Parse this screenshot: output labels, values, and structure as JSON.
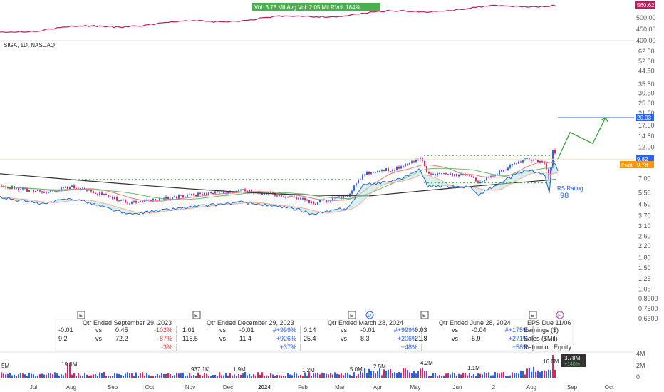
{
  "header": {
    "stats_line": "Vol: 3.78 Mil   Avg Vol: 2.05 Mil   RVol: 184%",
    "index_price_badge": "560.62",
    "index_ticks": [
      "500.00",
      "450.00",
      "400.00"
    ]
  },
  "symbol_label": "SIGA, 1D, NASDAQ",
  "price_axis": {
    "ticks": [
      "62.50",
      "52.50",
      "44.50",
      "35.50",
      "30.50",
      "25.50",
      "21.50",
      "17.50",
      "14.50",
      "12.00",
      "9.50",
      "7.00",
      "5.50",
      "4.50",
      "3.70",
      "3.10",
      "2.60",
      "2.20",
      "1.80",
      "1.50",
      "1.25",
      "1.05",
      "0.8900",
      "0.7500",
      "0.6300"
    ],
    "badges": {
      "target": "20.03",
      "last": "9.82",
      "pivot_prefix": "Pivot",
      "pivot": "9.78"
    }
  },
  "rs_rating": {
    "label": "RS Rating",
    "value": "98"
  },
  "fundamentals": {
    "markers": [
      {
        "letter": "E"
      },
      {
        "letter": "E"
      },
      {
        "letter": "E"
      },
      {
        "letter": "D"
      },
      {
        "letter": "E"
      },
      {
        "letter": "E"
      },
      {
        "letter": "F"
      }
    ],
    "quarters": [
      {
        "title": "Qtr Ended September 29, 2023",
        "rows": [
          [
            "-0.01",
            "vs",
            "0.45",
            "-102%"
          ],
          [
            "9.2",
            "vs",
            "72.2",
            "-87%"
          ],
          [
            "",
            "",
            "",
            "-3%"
          ]
        ]
      },
      {
        "title": "Qtr Ended December 29, 2023",
        "rows": [
          [
            "1.01",
            "vs",
            "-0.01",
            "#+999%"
          ],
          [
            "116.5",
            "vs",
            "11.4",
            "+926%"
          ],
          [
            "",
            "",
            "",
            "+37%"
          ]
        ]
      },
      {
        "title": "Qtr Ended March 28, 2024",
        "rows": [
          [
            "0.14",
            "vs",
            "-0.01",
            "#+999%"
          ],
          [
            "25.4",
            "vs",
            "8.3",
            "+206%"
          ],
          [
            "",
            "",
            "",
            "+48%"
          ]
        ]
      },
      {
        "title": "Qtr Ended June 28, 2024",
        "rows": [
          [
            "0.03",
            "vs",
            "-0.04",
            "#+175%"
          ],
          [
            "21.8",
            "vs",
            "5.9",
            "+271%"
          ],
          [
            "",
            "",
            "",
            "+58%"
          ]
        ]
      }
    ],
    "eps_due": "EPS Due 11/06",
    "row_labels": [
      "Earnings ($)",
      "Sales ($Mil)",
      "Return on Equity"
    ]
  },
  "volume": {
    "labels": [
      "5M",
      "19.3M",
      "937.1K",
      "1.9M",
      "1.2M",
      "5.0M",
      "2.5M",
      "4.2M",
      "1.1M",
      "16.6M"
    ],
    "axis_ticks": [
      "4M",
      "2M",
      "0"
    ],
    "badge_value": "3.78M",
    "badge_pct": "+140%"
  },
  "x_axis": [
    "Jul",
    "Aug",
    "Sep",
    "Oct",
    "Nov",
    "Dec",
    "2024",
    "Feb",
    "Mar",
    "Apr",
    "May",
    "Jun",
    "2",
    "Aug",
    "Sep",
    "Oct"
  ],
  "colors": {
    "up": "#2962ff",
    "down": "#e91e63",
    "index_line": "#c2185b",
    "ma_dark": "#333333",
    "ma_red": "#e57373",
    "ma_green": "#66bb6a",
    "rs_line": "#1e64dc",
    "target": "#2962ff",
    "pivot": "#ff9800",
    "arrow": "#2e9c2e",
    "dotted_green": "#43a047"
  },
  "chart_data": {
    "type": "candlestick",
    "symbol": "SIGA",
    "interval": "1D",
    "exchange": "NASDAQ",
    "scale": "log",
    "ylim": [
      0.63,
      62.5
    ],
    "months": [
      "Jul",
      "Aug",
      "Sep",
      "Oct",
      "Nov",
      "Dec",
      "2024",
      "Feb",
      "Mar",
      "Apr",
      "May",
      "Jun",
      "2",
      "Aug",
      "Sep",
      "Oct"
    ],
    "monthly_close_approx": [
      6.0,
      5.5,
      4.8,
      5.0,
      5.3,
      5.4,
      5.2,
      4.8,
      5.3,
      8.5,
      9.5,
      7.3,
      8.5,
      9.82
    ],
    "last_price": 9.82,
    "pivot": 9.78,
    "target": 20.03,
    "rs_rating": 98,
    "index_last": 560.62,
    "volume_last": 3780000,
    "volume_change_pct": 140
  }
}
